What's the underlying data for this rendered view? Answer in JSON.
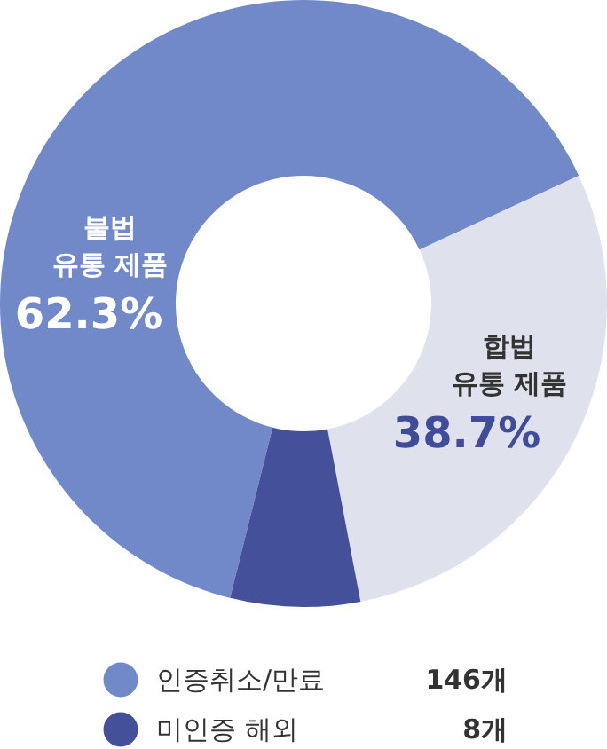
{
  "chart_data": {
    "type": "donut",
    "categories": [
      "인증취소/만료",
      null,
      "미인증 해외"
    ],
    "values": [
      64.2,
      28.9,
      6.9
    ],
    "colors": [
      "#7189c9",
      "#dfe2ec",
      "#44509a"
    ],
    "annotations": [
      "불법\n유통 제품",
      "62.3%",
      "합법\n유통 제품",
      "38.7%",
      "146개",
      "8개"
    ],
    "legend": "bottom"
  }
}
